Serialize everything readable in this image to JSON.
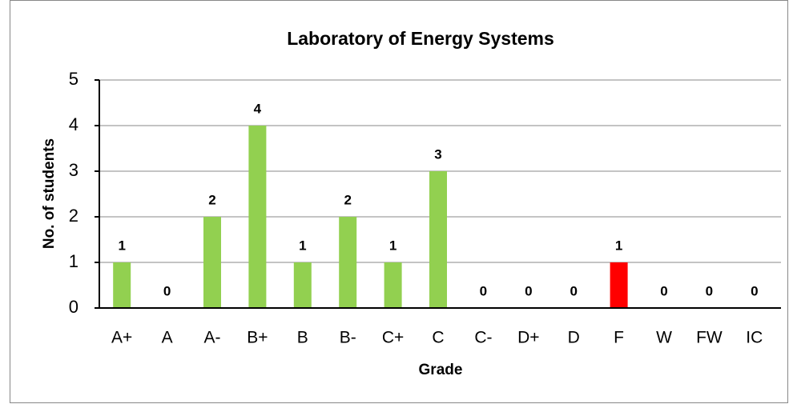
{
  "chart_data": {
    "type": "bar",
    "title": "Laboratory of Energy Systems",
    "x_label": "Grade",
    "y_label": "No. of students",
    "categories": [
      "A+",
      "A",
      "A-",
      "B+",
      "B",
      "B-",
      "C+",
      "C",
      "C-",
      "D+",
      "D",
      "F",
      "W",
      "FW",
      "IC"
    ],
    "values": [
      1,
      0,
      2,
      4,
      1,
      2,
      1,
      3,
      0,
      0,
      0,
      1,
      0,
      0,
      0
    ],
    "colors": [
      "#92d050",
      "#92d050",
      "#92d050",
      "#92d050",
      "#92d050",
      "#92d050",
      "#92d050",
      "#92d050",
      "#92d050",
      "#92d050",
      "#92d050",
      "#ff0000",
      "#92d050",
      "#92d050",
      "#92d050"
    ],
    "ylim": [
      0,
      5
    ],
    "yticks": [
      0,
      1,
      2,
      3,
      4,
      5
    ],
    "grid": true
  }
}
